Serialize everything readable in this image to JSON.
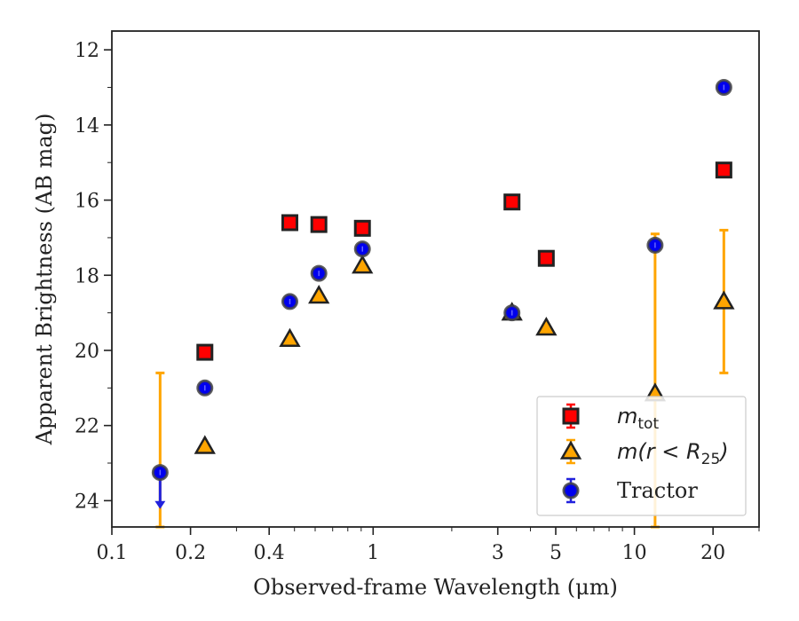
{
  "chart_data": {
    "type": "scatter",
    "title": "",
    "xlabel": "Observed-frame Wavelength (μm)",
    "ylabel": "Apparent Brightness (AB mag)",
    "xscale": "log",
    "xlim": [
      0.1,
      30
    ],
    "ylim": [
      24.7,
      11.5
    ],
    "y_inverted": true,
    "grid": false,
    "legend_position": "lower-right",
    "xticks": [
      {
        "value": 0.1,
        "label": "0.1"
      },
      {
        "value": 0.2,
        "label": "0.2"
      },
      {
        "value": 0.4,
        "label": "0.4"
      },
      {
        "value": 1,
        "label": "1"
      },
      {
        "value": 3,
        "label": "3"
      },
      {
        "value": 5,
        "label": "5"
      },
      {
        "value": 10,
        "label": "10"
      },
      {
        "value": 20,
        "label": "20"
      }
    ],
    "yticks": [
      {
        "value": 12,
        "label": "12"
      },
      {
        "value": 14,
        "label": "14"
      },
      {
        "value": 16,
        "label": "16"
      },
      {
        "value": 18,
        "label": "18"
      },
      {
        "value": 20,
        "label": "20"
      },
      {
        "value": 22,
        "label": "22"
      },
      {
        "value": 24,
        "label": "24"
      }
    ],
    "series": [
      {
        "name": "m_tot",
        "legend_main": "m",
        "legend_sub": "tot",
        "marker": "square",
        "color": "#ff0000",
        "edge": "#222222",
        "points": [
          {
            "x": 0.227,
            "y": 20.05
          },
          {
            "x": 0.48,
            "y": 16.6
          },
          {
            "x": 0.62,
            "y": 16.65
          },
          {
            "x": 0.91,
            "y": 16.75
          },
          {
            "x": 3.4,
            "y": 16.05
          },
          {
            "x": 4.6,
            "y": 17.55
          },
          {
            "x": 22,
            "y": 15.2
          }
        ]
      },
      {
        "name": "m(r < R25)",
        "legend_main": "m(r < R",
        "legend_sub": "25",
        "legend_tail": ")",
        "marker": "triangle",
        "color": "#ffa500",
        "edge": "#222222",
        "errcolor": "#ffa500",
        "points": [
          {
            "x": 0.227,
            "y": 22.55
          },
          {
            "x": 0.48,
            "y": 19.7
          },
          {
            "x": 0.62,
            "y": 18.55
          },
          {
            "x": 0.91,
            "y": 17.75
          },
          {
            "x": 3.4,
            "y": 19.0
          },
          {
            "x": 4.6,
            "y": 19.4
          },
          {
            "x": 12,
            "y": 21.15,
            "err_lo": 16.9,
            "err_hi": 24.7
          },
          {
            "x": 22,
            "y": 18.7,
            "err_lo": 16.8,
            "err_hi": 20.6
          }
        ],
        "extra_errorbars": [
          {
            "x": 0.153,
            "lo": 20.6,
            "hi": 24.7
          }
        ]
      },
      {
        "name": "Tractor",
        "legend_main": "Tractor",
        "marker": "circle",
        "color": "#0000ee",
        "edge": "#444444",
        "errcolor": "#2222dd",
        "points": [
          {
            "x": 0.153,
            "y": 23.25,
            "upper_limit": true
          },
          {
            "x": 0.227,
            "y": 21.0
          },
          {
            "x": 0.48,
            "y": 18.7
          },
          {
            "x": 0.62,
            "y": 17.95
          },
          {
            "x": 0.91,
            "y": 17.3
          },
          {
            "x": 3.4,
            "y": 19.0
          },
          {
            "x": 12,
            "y": 17.2
          },
          {
            "x": 22,
            "y": 13.0
          }
        ]
      }
    ]
  }
}
